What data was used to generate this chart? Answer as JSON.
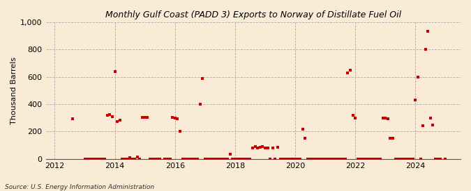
{
  "title": "Monthly Gulf Coast (PADD 3) Exports to Norway of Distillate Fuel Oil",
  "ylabel": "Thousand Barrels",
  "source": "Source: U.S. Energy Information Administration",
  "background_color": "#faebd7",
  "marker_color": "#cc0000",
  "ylim": [
    0,
    1000
  ],
  "yticks": [
    0,
    200,
    400,
    600,
    800,
    1000
  ],
  "xlim_start": 2011.7,
  "xlim_end": 2025.5,
  "xticks": [
    2012,
    2014,
    2016,
    2018,
    2020,
    2022,
    2024
  ],
  "data": [
    [
      2012.583,
      295
    ],
    [
      2013.0,
      0
    ],
    [
      2013.083,
      0
    ],
    [
      2013.167,
      0
    ],
    [
      2013.25,
      0
    ],
    [
      2013.333,
      0
    ],
    [
      2013.417,
      0
    ],
    [
      2013.5,
      0
    ],
    [
      2013.583,
      0
    ],
    [
      2013.667,
      0
    ],
    [
      2013.75,
      320
    ],
    [
      2013.833,
      325
    ],
    [
      2013.917,
      310
    ],
    [
      2014.0,
      640
    ],
    [
      2014.083,
      275
    ],
    [
      2014.167,
      285
    ],
    [
      2014.25,
      0
    ],
    [
      2014.333,
      0
    ],
    [
      2014.417,
      0
    ],
    [
      2014.5,
      10
    ],
    [
      2014.583,
      0
    ],
    [
      2014.667,
      0
    ],
    [
      2014.75,
      15
    ],
    [
      2014.833,
      0
    ],
    [
      2014.917,
      305
    ],
    [
      2015.0,
      305
    ],
    [
      2015.083,
      305
    ],
    [
      2015.167,
      0
    ],
    [
      2015.25,
      0
    ],
    [
      2015.333,
      0
    ],
    [
      2015.417,
      0
    ],
    [
      2015.5,
      0
    ],
    [
      2015.667,
      0
    ],
    [
      2015.75,
      0
    ],
    [
      2015.833,
      0
    ],
    [
      2015.917,
      305
    ],
    [
      2016.0,
      300
    ],
    [
      2016.083,
      295
    ],
    [
      2016.167,
      200
    ],
    [
      2016.25,
      0
    ],
    [
      2016.333,
      0
    ],
    [
      2016.417,
      0
    ],
    [
      2016.5,
      0
    ],
    [
      2016.583,
      0
    ],
    [
      2016.667,
      0
    ],
    [
      2016.75,
      0
    ],
    [
      2016.833,
      400
    ],
    [
      2016.917,
      590
    ],
    [
      2017.0,
      0
    ],
    [
      2017.083,
      0
    ],
    [
      2017.167,
      0
    ],
    [
      2017.25,
      0
    ],
    [
      2017.333,
      0
    ],
    [
      2017.417,
      0
    ],
    [
      2017.5,
      0
    ],
    [
      2017.583,
      0
    ],
    [
      2017.667,
      0
    ],
    [
      2017.75,
      0
    ],
    [
      2017.833,
      35
    ],
    [
      2017.917,
      0
    ],
    [
      2018.0,
      0
    ],
    [
      2018.083,
      0
    ],
    [
      2018.167,
      0
    ],
    [
      2018.25,
      0
    ],
    [
      2018.333,
      0
    ],
    [
      2018.417,
      0
    ],
    [
      2018.5,
      0
    ],
    [
      2018.583,
      80
    ],
    [
      2018.667,
      90
    ],
    [
      2018.75,
      80
    ],
    [
      2018.833,
      85
    ],
    [
      2018.917,
      90
    ],
    [
      2019.0,
      80
    ],
    [
      2019.083,
      80
    ],
    [
      2019.167,
      0
    ],
    [
      2019.25,
      80
    ],
    [
      2019.333,
      0
    ],
    [
      2019.417,
      85
    ],
    [
      2019.5,
      0
    ],
    [
      2019.583,
      0
    ],
    [
      2019.667,
      0
    ],
    [
      2019.75,
      0
    ],
    [
      2019.833,
      0
    ],
    [
      2019.917,
      0
    ],
    [
      2020.0,
      0
    ],
    [
      2020.083,
      0
    ],
    [
      2020.167,
      0
    ],
    [
      2020.25,
      215
    ],
    [
      2020.333,
      150
    ],
    [
      2020.417,
      0
    ],
    [
      2020.5,
      0
    ],
    [
      2020.583,
      0
    ],
    [
      2020.667,
      0
    ],
    [
      2020.75,
      0
    ],
    [
      2020.833,
      0
    ],
    [
      2020.917,
      0
    ],
    [
      2021.0,
      0
    ],
    [
      2021.083,
      0
    ],
    [
      2021.167,
      0
    ],
    [
      2021.25,
      0
    ],
    [
      2021.333,
      0
    ],
    [
      2021.417,
      0
    ],
    [
      2021.5,
      0
    ],
    [
      2021.583,
      0
    ],
    [
      2021.667,
      0
    ],
    [
      2021.75,
      630
    ],
    [
      2021.833,
      650
    ],
    [
      2021.917,
      320
    ],
    [
      2022.0,
      300
    ],
    [
      2022.083,
      0
    ],
    [
      2022.167,
      0
    ],
    [
      2022.25,
      0
    ],
    [
      2022.333,
      0
    ],
    [
      2022.417,
      0
    ],
    [
      2022.5,
      0
    ],
    [
      2022.583,
      0
    ],
    [
      2022.667,
      0
    ],
    [
      2022.75,
      0
    ],
    [
      2022.833,
      0
    ],
    [
      2022.917,
      300
    ],
    [
      2023.0,
      300
    ],
    [
      2023.083,
      295
    ],
    [
      2023.167,
      150
    ],
    [
      2023.25,
      150
    ],
    [
      2023.333,
      0
    ],
    [
      2023.417,
      0
    ],
    [
      2023.5,
      0
    ],
    [
      2023.583,
      0
    ],
    [
      2023.667,
      0
    ],
    [
      2023.75,
      0
    ],
    [
      2023.833,
      0
    ],
    [
      2023.917,
      0
    ],
    [
      2024.0,
      430
    ],
    [
      2024.083,
      600
    ],
    [
      2024.167,
      0
    ],
    [
      2024.25,
      240
    ],
    [
      2024.333,
      800
    ],
    [
      2024.417,
      935
    ],
    [
      2024.5,
      300
    ],
    [
      2024.583,
      245
    ],
    [
      2024.667,
      0
    ],
    [
      2024.75,
      0
    ],
    [
      2024.833,
      0
    ],
    [
      2025.0,
      0
    ]
  ]
}
